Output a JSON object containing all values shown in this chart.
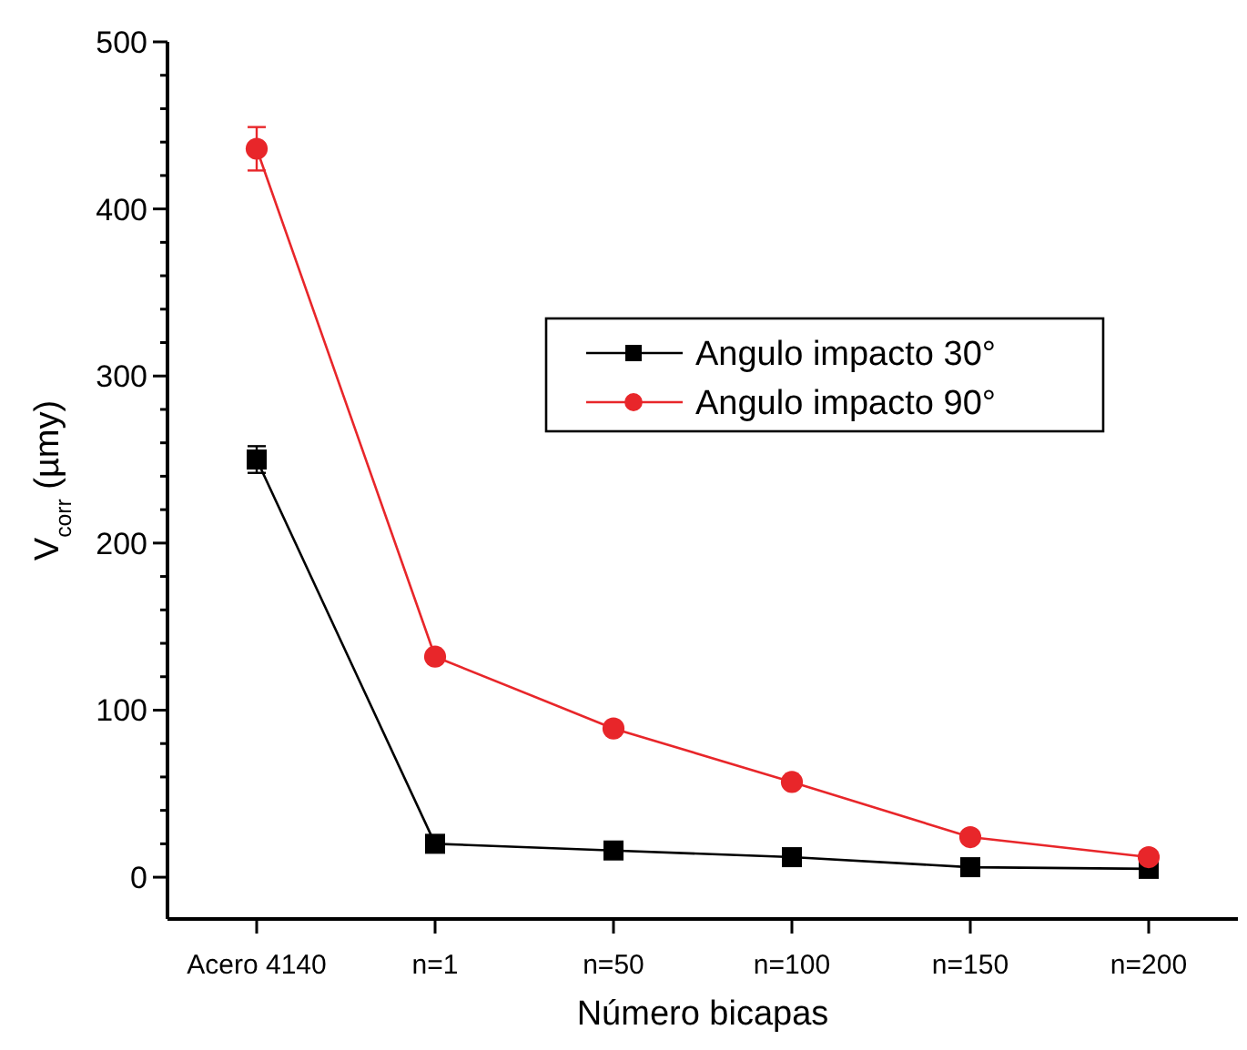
{
  "chart_data": {
    "type": "line",
    "xlabel": "Número bicapas",
    "ylabel": "V$_{corr}$ (µmy)",
    "categories": [
      "Acero 4140",
      "n=1",
      "n=50",
      "n=100",
      "n=150",
      "n=200"
    ],
    "ylim": [
      -25,
      500
    ],
    "yticks": [
      0,
      {
        "value": 20,
        "label": null
      },
      {
        "value": 40,
        "label": null
      },
      {
        "value": 60,
        "label": null
      },
      {
        "value": 80,
        "label": null
      },
      100,
      {
        "value": 120,
        "label": null
      },
      {
        "value": 140,
        "label": null
      },
      {
        "value": 160,
        "label": null
      },
      {
        "value": 180,
        "label": null
      },
      200,
      {
        "value": 220,
        "label": null
      },
      {
        "value": 240,
        "label": null
      },
      {
        "value": 260,
        "label": null
      },
      {
        "value": 280,
        "label": null
      },
      300,
      {
        "value": 320,
        "label": null
      },
      {
        "value": 340,
        "label": null
      },
      {
        "value": 360,
        "label": null
      },
      {
        "value": 380,
        "label": null
      },
      400,
      {
        "value": 420,
        "label": null
      },
      {
        "value": 440,
        "label": null
      },
      {
        "value": 460,
        "label": null
      },
      {
        "value": 480,
        "label": null
      },
      500
    ],
    "grid": false,
    "legend": "top right",
    "series": [
      {
        "name": "Angulo impacto 30°",
        "color": "#000000",
        "marker": "square",
        "values": [
          250,
          20,
          16,
          12,
          6,
          5
        ],
        "errors": [
          8,
          null,
          null,
          null,
          null,
          null
        ]
      },
      {
        "name": "Angulo impacto 90°",
        "color": "#e8262a",
        "marker": "circle",
        "values": [
          436,
          132,
          89,
          57,
          24,
          12
        ],
        "errors": [
          13,
          null,
          null,
          null,
          null,
          null
        ]
      }
    ]
  }
}
